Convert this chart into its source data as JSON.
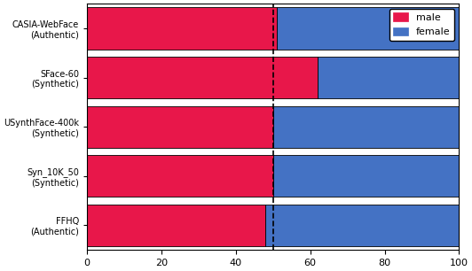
{
  "categories": [
    "CASIA-WebFace\n(Authentic)",
    "SFace-60\n(Synthetic)",
    "USynthFace-400k\n(Synthetic)",
    "Syn_10K_50\n(Synthetic)",
    "FFHQ\n(Authentic)"
  ],
  "male_values": [
    51.0,
    62.0,
    50.0,
    50.0,
    48.0
  ],
  "female_values": [
    49.0,
    38.0,
    50.0,
    50.0,
    52.0
  ],
  "male_color": "#E8174A",
  "female_color": "#4472C4",
  "dashed_line_x": 50,
  "xlim": [
    0,
    100
  ],
  "xticks": [
    0,
    20,
    40,
    60,
    80,
    100
  ],
  "legend_labels": [
    "male",
    "female"
  ],
  "bar_height": 0.85,
  "figsize": [
    5.32,
    3.06
  ],
  "dpi": 100
}
